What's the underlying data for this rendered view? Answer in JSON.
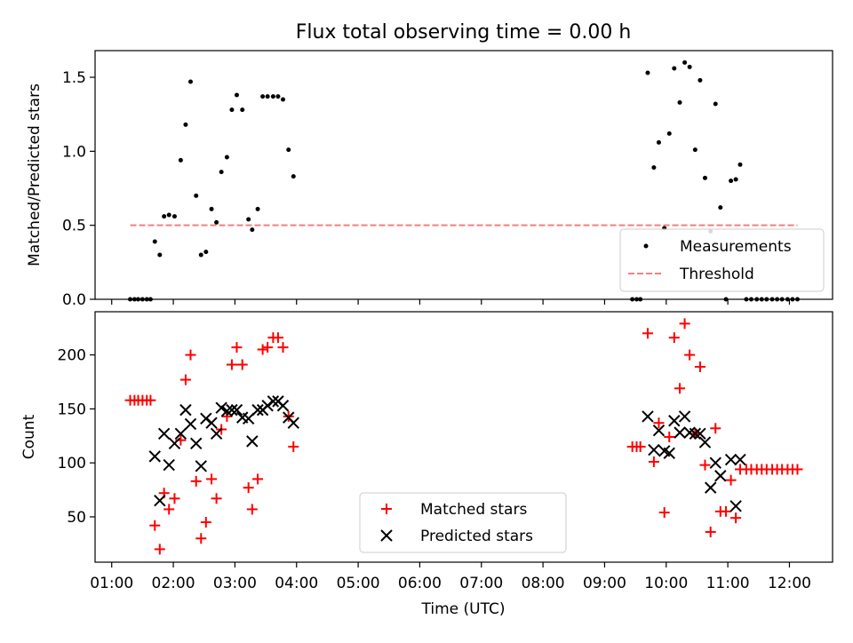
{
  "chart_data": [
    {
      "type": "scatter",
      "title": "Flux total observing time = 0.00 h",
      "xlabel": "",
      "ylabel": "Matched/Predicted stars",
      "xlim": [
        0.73,
        12.7
      ],
      "ylim": [
        0,
        1.68
      ],
      "yticks": [
        0.0,
        0.5,
        1.0,
        1.5
      ],
      "ytick_labels": [
        "0.0",
        "0.5",
        "1.0",
        "1.5"
      ],
      "legend_position": "bottom-right",
      "series": [
        {
          "name": "Measurements",
          "color": "#000000",
          "marker": "dot",
          "x": [
            1.3,
            1.37,
            1.43,
            1.5,
            1.57,
            1.63,
            1.7,
            1.78,
            1.85,
            1.93,
            2.02,
            2.12,
            2.2,
            2.28,
            2.37,
            2.45,
            2.53,
            2.62,
            2.7,
            2.78,
            2.87,
            2.95,
            3.03,
            3.12,
            3.22,
            3.28,
            3.37,
            3.45,
            3.53,
            3.62,
            3.7,
            3.78,
            3.87,
            3.95,
            9.45,
            9.52,
            9.58,
            9.7,
            9.8,
            9.88,
            9.97,
            10.05,
            10.13,
            10.22,
            10.3,
            10.38,
            10.47,
            10.55,
            10.63,
            10.72,
            10.8,
            10.88,
            10.97,
            11.05,
            11.13,
            11.2,
            11.3,
            11.38,
            11.47,
            11.55,
            11.63,
            11.72,
            11.8,
            11.88,
            11.97,
            12.05,
            12.13
          ],
          "y": [
            0,
            0,
            0,
            0,
            0,
            0,
            0.39,
            0.3,
            0.56,
            0.57,
            0.56,
            0.94,
            1.18,
            1.47,
            0.7,
            0.3,
            0.32,
            0.61,
            0.52,
            0.86,
            0.96,
            1.28,
            1.38,
            1.28,
            0.54,
            0.47,
            0.61,
            1.37,
            1.37,
            1.37,
            1.37,
            1.35,
            1.01,
            0.83,
            0,
            0,
            0,
            1.53,
            0.89,
            1.06,
            0.48,
            1.12,
            1.56,
            1.33,
            1.6,
            1.57,
            1.01,
            1.48,
            0.82,
            0.46,
            1.32,
            0.62,
            0,
            0.8,
            0.81,
            0.91,
            0,
            0,
            0,
            0,
            0,
            0,
            0,
            0,
            0,
            0,
            0
          ]
        },
        {
          "name": "Threshold",
          "color": "#f08080",
          "style": "dashed",
          "x": [
            1.3,
            12.13
          ],
          "y": [
            0.5,
            0.5
          ]
        }
      ]
    },
    {
      "type": "scatter",
      "title": "",
      "xlabel": "Time (UTC)",
      "ylabel": "Count",
      "xlim": [
        0.73,
        12.7
      ],
      "ylim": [
        8,
        240
      ],
      "yticks": [
        50,
        100,
        150,
        200
      ],
      "ytick_labels": [
        "50",
        "100",
        "150",
        "200"
      ],
      "xticks": [
        1,
        2,
        3,
        4,
        5,
        6,
        7,
        8,
        9,
        10,
        11,
        12
      ],
      "xtick_labels": [
        "01:00",
        "02:00",
        "03:00",
        "04:00",
        "05:00",
        "06:00",
        "07:00",
        "08:00",
        "09:00",
        "10:00",
        "11:00",
        "12:00"
      ],
      "legend_position": "bottom-center",
      "series": [
        {
          "name": "Matched stars",
          "color": "#ff0000",
          "marker": "plus",
          "x": [
            1.3,
            1.37,
            1.43,
            1.5,
            1.57,
            1.63,
            1.7,
            1.78,
            1.85,
            1.93,
            2.02,
            2.12,
            2.2,
            2.28,
            2.37,
            2.45,
            2.53,
            2.62,
            2.7,
            2.78,
            2.87,
            2.95,
            3.03,
            3.12,
            3.22,
            3.28,
            3.37,
            3.45,
            3.53,
            3.62,
            3.7,
            3.78,
            3.87,
            3.95,
            9.45,
            9.52,
            9.58,
            9.7,
            9.8,
            9.88,
            9.97,
            10.05,
            10.13,
            10.22,
            10.3,
            10.38,
            10.47,
            10.55,
            10.63,
            10.72,
            10.8,
            10.88,
            10.97,
            11.05,
            11.13,
            11.2,
            11.3,
            11.38,
            11.47,
            11.55,
            11.63,
            11.72,
            11.8,
            11.88,
            11.97,
            12.05,
            12.13
          ],
          "y": [
            158,
            158,
            158,
            158,
            158,
            158,
            42,
            20,
            72,
            57,
            67,
            121,
            177,
            200,
            83,
            30,
            45,
            85,
            67,
            131,
            143,
            191,
            207,
            191,
            77,
            57,
            85,
            205,
            207,
            216,
            216,
            207,
            143,
            115,
            115,
            115,
            115,
            220,
            101,
            137,
            54,
            124,
            216,
            169,
            229,
            200,
            127,
            189,
            98,
            36,
            132,
            55,
            55,
            84,
            49,
            94,
            94,
            94,
            94,
            94,
            94,
            94,
            94,
            94,
            94,
            94,
            94
          ]
        },
        {
          "name": "Predicted stars",
          "color": "#000000",
          "marker": "x",
          "x": [
            1.7,
            1.78,
            1.85,
            1.93,
            2.02,
            2.12,
            2.2,
            2.28,
            2.37,
            2.45,
            2.53,
            2.62,
            2.7,
            2.78,
            2.87,
            2.95,
            3.03,
            3.12,
            3.22,
            3.28,
            3.37,
            3.45,
            3.53,
            3.62,
            3.7,
            3.78,
            3.87,
            3.95,
            9.7,
            9.8,
            9.88,
            9.97,
            10.05,
            10.13,
            10.22,
            10.3,
            10.38,
            10.47,
            10.55,
            10.63,
            10.72,
            10.8,
            10.88,
            11.05,
            11.13,
            11.2
          ],
          "y": [
            106,
            65,
            127,
            98,
            118,
            127,
            149,
            136,
            118,
            97,
            141,
            137,
            127,
            151,
            148,
            149,
            149,
            142,
            141,
            120,
            149,
            149,
            153,
            157,
            157,
            153,
            142,
            137,
            143,
            112,
            130,
            111,
            109,
            139,
            128,
            143,
            128,
            127,
            127,
            119,
            77,
            100,
            88,
            103,
            60,
            103
          ]
        }
      ]
    }
  ]
}
